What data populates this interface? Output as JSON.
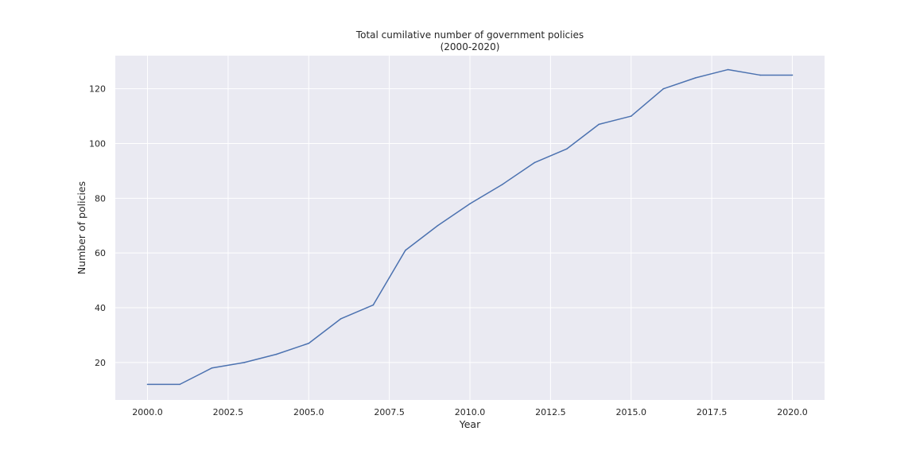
{
  "chart_data": {
    "type": "line",
    "title": "Total cumilative number of government policies",
    "subtitle": "(2000-2020)",
    "xlabel": "Year",
    "ylabel": "Number of policies",
    "xlim": [
      1999.0,
      2021.0
    ],
    "ylim": [
      6.3,
      132.1
    ],
    "x_ticks": [
      2000.0,
      2002.5,
      2005.0,
      2007.5,
      2010.0,
      2012.5,
      2015.0,
      2017.5,
      2020.0
    ],
    "x_tick_labels": [
      "2000.0",
      "2002.5",
      "2005.0",
      "2007.5",
      "2010.0",
      "2012.5",
      "2015.0",
      "2017.5",
      "2020.0"
    ],
    "y_ticks": [
      20,
      40,
      60,
      80,
      100,
      120
    ],
    "y_tick_labels": [
      "20",
      "40",
      "60",
      "80",
      "100",
      "120"
    ],
    "grid": true,
    "background_color": "#eaeaf2",
    "grid_color": "#ffffff",
    "series": [
      {
        "color": "#4c72b0",
        "x": [
          2000,
          2001,
          2002,
          2003,
          2004,
          2005,
          2006,
          2007,
          2008,
          2009,
          2010,
          2011,
          2012,
          2013,
          2014,
          2015,
          2016,
          2017,
          2018,
          2019,
          2020
        ],
        "y": [
          12,
          12,
          18,
          20,
          23,
          27,
          36,
          41,
          61,
          70,
          78,
          85,
          93,
          98,
          107,
          110,
          120,
          124,
          127,
          125,
          125
        ]
      }
    ]
  }
}
